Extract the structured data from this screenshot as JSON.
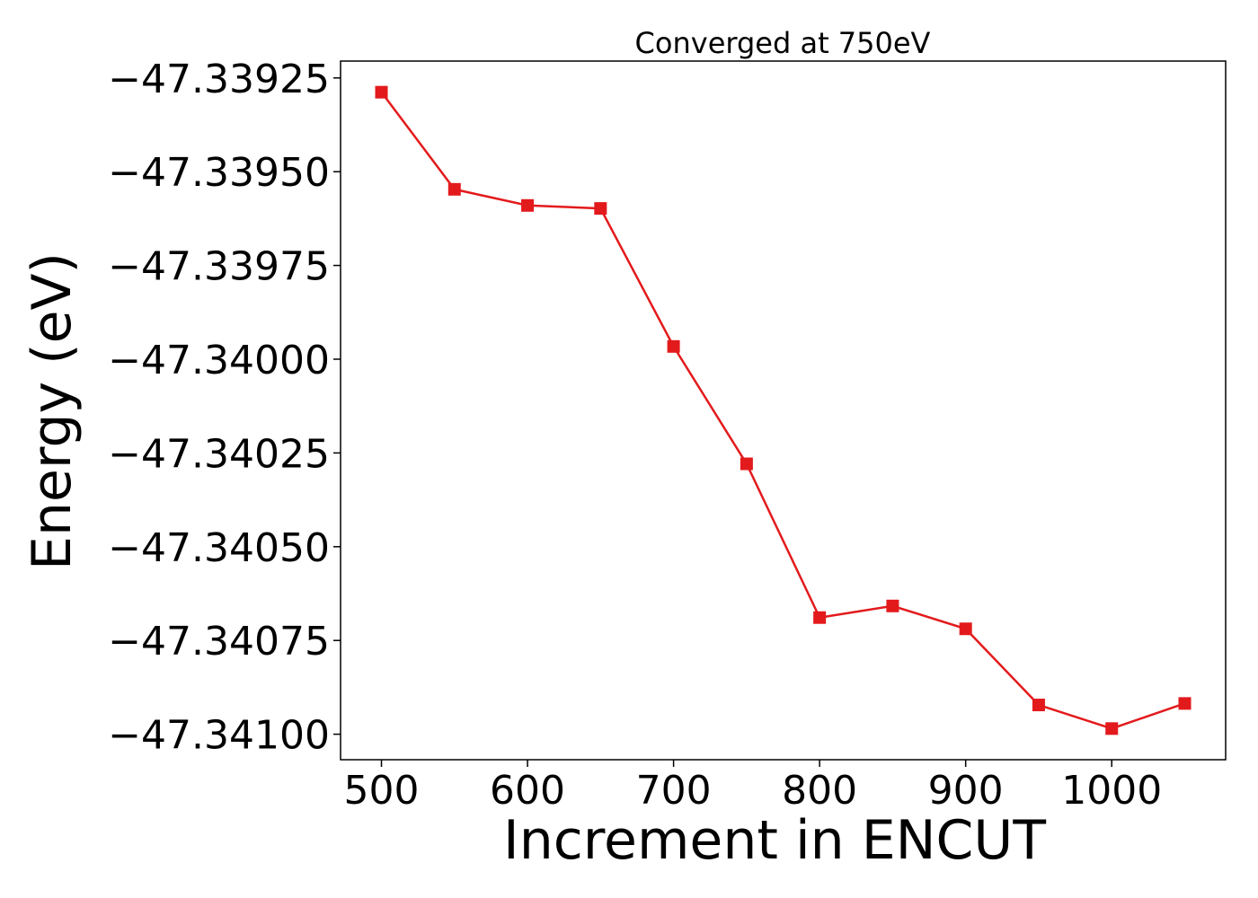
{
  "chart_data": {
    "type": "line",
    "title": "Converged at 750eV",
    "xlabel": "Increment in ENCUT",
    "ylabel": "Energy (eV)",
    "xlim": [
      472,
      1078
    ],
    "ylim": [
      -47.341068,
      -47.339205
    ],
    "x_ticks": [
      500,
      600,
      700,
      800,
      900,
      1000
    ],
    "x_tick_labels": [
      "500",
      "600",
      "700",
      "800",
      "900",
      "1000"
    ],
    "y_ticks": [
      -47.33925,
      -47.3395,
      -47.33975,
      -47.34,
      -47.34025,
      -47.3405,
      -47.34075,
      -47.341
    ],
    "y_tick_labels": [
      "−47.33925",
      "−47.33950",
      "−47.33975",
      "−47.34000",
      "−47.34025",
      "−47.34050",
      "−47.34075",
      "−47.34100"
    ],
    "grid": false,
    "series": [
      {
        "color": "#e31a1c",
        "marker": "square",
        "x": [
          500,
          550,
          600,
          650,
          700,
          750,
          800,
          850,
          900,
          950,
          1000,
          1050
        ],
        "y": [
          -47.339288,
          -47.339547,
          -47.33959,
          -47.339598,
          -47.339966,
          -47.340279,
          -47.340689,
          -47.340658,
          -47.340719,
          -47.340922,
          -47.340985,
          -47.340918
        ]
      }
    ]
  }
}
